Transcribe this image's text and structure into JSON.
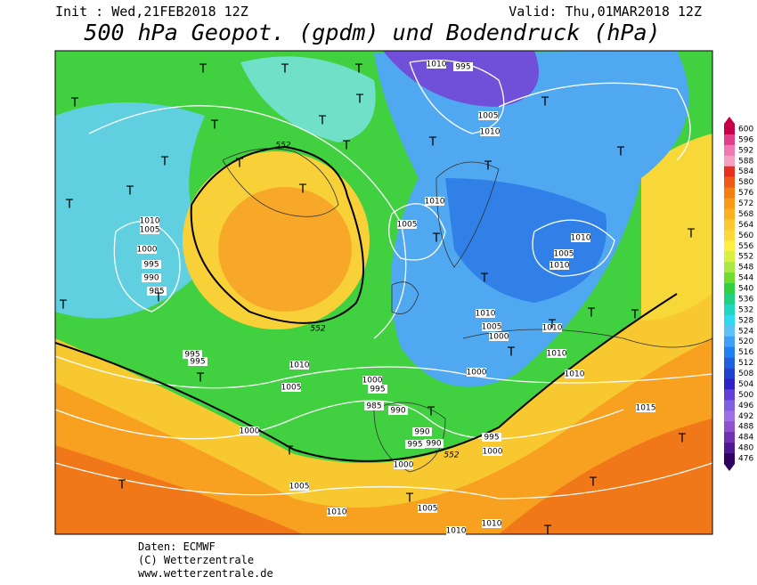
{
  "header": {
    "init": "Init : Wed,21FEB2018 12Z",
    "valid": "Valid: Thu,01MAR2018 12Z",
    "title": "500 hPa Geopot. (gpdm) und Bodendruck (hPa)"
  },
  "colorbar": {
    "labels": [
      600,
      596,
      592,
      588,
      584,
      580,
      576,
      572,
      568,
      564,
      560,
      556,
      552,
      548,
      544,
      540,
      536,
      532,
      528,
      524,
      520,
      516,
      512,
      508,
      504,
      500,
      496,
      492,
      488,
      484,
      480,
      476
    ],
    "colors": [
      "#c8004a",
      "#e0408a",
      "#f07ab0",
      "#f4a0c0",
      "#e83020",
      "#f05a18",
      "#f57e10",
      "#f89a18",
      "#fbb020",
      "#fcc830",
      "#fdd838",
      "#fff040",
      "#d8f040",
      "#a8e840",
      "#70dc30",
      "#30d040",
      "#20d080",
      "#20d8c0",
      "#30d8f0",
      "#60c0f8",
      "#40a0f8",
      "#2080f0",
      "#2060e0",
      "#2040d0",
      "#3020c8",
      "#6040d8",
      "#8060e0",
      "#a070e8",
      "#9050d0",
      "#7030b0",
      "#501890",
      "#300060"
    ]
  },
  "map": {
    "isobar_labels": [
      "1010",
      "995",
      "1005",
      "1010",
      "1010",
      "1005",
      "1000",
      "995",
      "990",
      "985",
      "1005",
      "1010",
      "1010",
      "1005",
      "1010",
      "1010",
      "1005",
      "1000",
      "995",
      "995",
      "1010",
      "1005",
      "1000",
      "995",
      "985",
      "990",
      "1000",
      "990",
      "995",
      "990",
      "995",
      "1000",
      "1000",
      "1005",
      "1005",
      "1010",
      "1010",
      "1010",
      "1015",
      "1010",
      "1010",
      "1010",
      "1000"
    ],
    "geopotential_labels": [
      "552",
      "552",
      "552"
    ],
    "low_markers": [
      "T",
      "T",
      "T",
      "T",
      "T",
      "T",
      "T",
      "T",
      "T",
      "T",
      "T",
      "T",
      "T",
      "T",
      "T",
      "T",
      "T",
      "T",
      "T",
      "T",
      "T",
      "T",
      "T",
      "T",
      "T",
      "T",
      "T",
      "T",
      "T",
      "T",
      "T",
      "T",
      "T",
      "T"
    ]
  },
  "footer": {
    "data": "Daten: ECMWF",
    "copyright": "(C) Wetterzentrale",
    "url": "www.wetterzentrale.de"
  }
}
